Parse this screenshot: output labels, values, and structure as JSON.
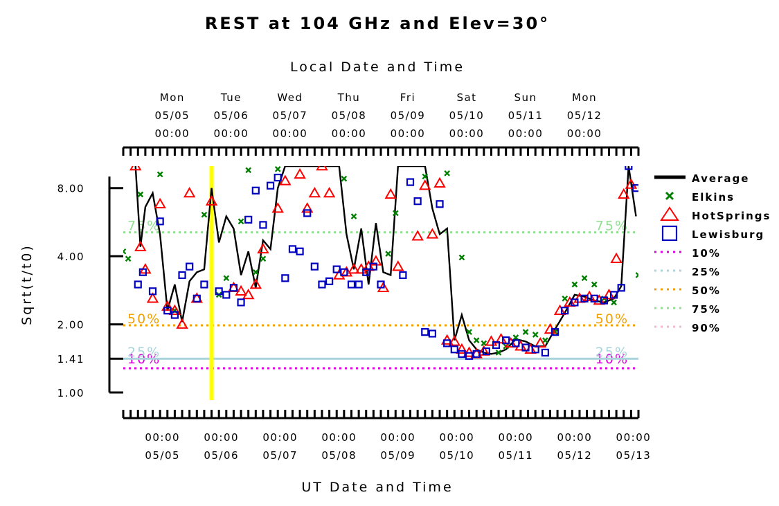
{
  "chart_data": {
    "type": "scatter",
    "title": "REST at 104 GHz and Elev=30°",
    "xlabel": "UT Date and Time",
    "x2label": "Local Date and Time",
    "ylabel": "Sqrt(t/t0)",
    "y_scale": "log",
    "ylim": [
      1.0,
      10.0
    ],
    "xlim": [
      "2008-05-04T08:00",
      "2008-05-13T02:00"
    ],
    "y_ticks": [
      "1.00",
      "1.41",
      "2.00",
      "4.00",
      "8.00"
    ],
    "y_tick_values": [
      1.0,
      1.41,
      2.0,
      4.0,
      8.0
    ],
    "x_ticks_ut": [
      {
        "time": "00:00",
        "date": "05/05"
      },
      {
        "time": "00:00",
        "date": "05/06"
      },
      {
        "time": "00:00",
        "date": "05/07"
      },
      {
        "time": "00:00",
        "date": "05/08"
      },
      {
        "time": "00:00",
        "date": "05/09"
      },
      {
        "time": "00:00",
        "date": "05/10"
      },
      {
        "time": "00:00",
        "date": "05/11"
      },
      {
        "time": "00:00",
        "date": "05/12"
      },
      {
        "time": "00:00",
        "date": "05/13"
      }
    ],
    "x_ticks_local": [
      {
        "day": "Mon",
        "date": "05/05",
        "time": "00:00"
      },
      {
        "day": "Tue",
        "date": "05/06",
        "time": "00:00"
      },
      {
        "day": "Wed",
        "date": "05/07",
        "time": "00:00"
      },
      {
        "day": "Thu",
        "date": "05/08",
        "time": "00:00"
      },
      {
        "day": "Fri",
        "date": "05/09",
        "time": "00:00"
      },
      {
        "day": "Sat",
        "date": "05/10",
        "time": "00:00"
      },
      {
        "day": "Sun",
        "date": "05/11",
        "time": "00:00"
      },
      {
        "day": "Mon",
        "date": "05/12",
        "time": "00:00"
      }
    ],
    "highlight_x": "2008-05-05T20:00",
    "reference_lines": [
      {
        "label": "10%",
        "value": 1.28,
        "color": "#e000e0"
      },
      {
        "label": "25%",
        "value": 1.41,
        "color": "#aad4dc"
      },
      {
        "label": "50%",
        "value": 1.98,
        "color": "#f0a000"
      },
      {
        "label": "75%",
        "value": 5.1,
        "color": "#90e090"
      },
      {
        "label": "90%",
        "value": null,
        "color": "#f4b8c8"
      }
    ],
    "series": [
      {
        "name": "Average",
        "marker": "line",
        "color": "#000000",
        "points": [
          [
            "2008-05-04T13:00",
            10.0
          ],
          [
            "2008-05-04T15:00",
            4.4
          ],
          [
            "2008-05-04T17:00",
            6.6
          ],
          [
            "2008-05-04T20:00",
            7.6
          ],
          [
            "2008-05-04T23:00",
            5.0
          ],
          [
            "2008-05-05T02:00",
            2.3
          ],
          [
            "2008-05-05T05:00",
            3.0
          ],
          [
            "2008-05-05T08:00",
            2.05
          ],
          [
            "2008-05-05T11:00",
            3.1
          ],
          [
            "2008-05-05T14:00",
            3.4
          ],
          [
            "2008-05-05T17:00",
            3.5
          ],
          [
            "2008-05-05T20:00",
            8.0
          ],
          [
            "2008-05-05T23:00",
            4.6
          ],
          [
            "2008-05-06T02:00",
            6.0
          ],
          [
            "2008-05-06T05:00",
            5.3
          ],
          [
            "2008-05-06T08:00",
            3.3
          ],
          [
            "2008-05-06T11:00",
            4.2
          ],
          [
            "2008-05-06T14:00",
            2.9
          ],
          [
            "2008-05-06T17:00",
            4.7
          ],
          [
            "2008-05-06T20:00",
            4.3
          ],
          [
            "2008-05-06T23:00",
            8.0
          ],
          [
            "2008-05-07T02:00",
            10.0
          ],
          [
            "2008-05-08T00:00",
            10.0
          ],
          [
            "2008-05-08T03:00",
            5.0
          ],
          [
            "2008-05-08T06:00",
            3.5
          ],
          [
            "2008-05-08T09:00",
            5.3
          ],
          [
            "2008-05-08T12:00",
            3.0
          ],
          [
            "2008-05-08T15:00",
            5.6
          ],
          [
            "2008-05-08T18:00",
            3.4
          ],
          [
            "2008-05-08T21:00",
            3.3
          ],
          [
            "2008-05-09T00:00",
            10.0
          ],
          [
            "2008-05-09T11:00",
            10.0
          ],
          [
            "2008-05-09T14:00",
            6.5
          ],
          [
            "2008-05-09T17:00",
            5.0
          ],
          [
            "2008-05-09T20:00",
            5.3
          ],
          [
            "2008-05-09T23:00",
            1.7
          ],
          [
            "2008-05-10T02:00",
            2.2
          ],
          [
            "2008-05-10T05:00",
            1.7
          ],
          [
            "2008-05-10T08:00",
            1.55
          ],
          [
            "2008-05-10T11:00",
            1.5
          ],
          [
            "2008-05-10T14:00",
            1.48
          ],
          [
            "2008-05-10T17:00",
            1.5
          ],
          [
            "2008-05-10T20:00",
            1.55
          ],
          [
            "2008-05-11T00:00",
            1.72
          ],
          [
            "2008-05-11T04:00",
            1.68
          ],
          [
            "2008-05-11T08:00",
            1.6
          ],
          [
            "2008-05-11T12:00",
            1.6
          ],
          [
            "2008-05-11T16:00",
            1.9
          ],
          [
            "2008-05-11T20:00",
            2.25
          ],
          [
            "2008-05-12T00:00",
            2.7
          ],
          [
            "2008-05-12T04:00",
            2.65
          ],
          [
            "2008-05-12T08:00",
            2.55
          ],
          [
            "2008-05-12T12:00",
            2.5
          ],
          [
            "2008-05-12T16:00",
            2.6
          ],
          [
            "2008-05-12T19:00",
            2.95
          ],
          [
            "2008-05-12T22:00",
            10.0
          ],
          [
            "2008-05-13T01:00",
            6.0
          ]
        ]
      },
      {
        "name": "Elkins",
        "marker": "x",
        "color": "#008000",
        "points": [
          [
            "2008-05-04T08:00",
            4.2
          ],
          [
            "2008-05-04T10:00",
            3.9
          ],
          [
            "2008-05-04T15:00",
            7.5
          ],
          [
            "2008-05-04T23:00",
            9.2
          ],
          [
            "2008-05-05T05:00",
            2.3
          ],
          [
            "2008-05-05T17:00",
            6.1
          ],
          [
            "2008-05-05T23:00",
            2.7
          ],
          [
            "2008-05-06T02:00",
            3.2
          ],
          [
            "2008-05-06T08:00",
            5.7
          ],
          [
            "2008-05-06T11:00",
            9.6
          ],
          [
            "2008-05-06T14:00",
            3.4
          ],
          [
            "2008-05-06T17:00",
            3.9
          ],
          [
            "2008-05-06T23:00",
            9.7
          ],
          [
            "2008-05-08T02:00",
            8.8
          ],
          [
            "2008-05-08T06:00",
            6.0
          ],
          [
            "2008-05-08T20:00",
            4.1
          ],
          [
            "2008-05-08T23:00",
            6.2
          ],
          [
            "2008-05-09T11:00",
            9.0
          ],
          [
            "2008-05-09T20:00",
            9.3
          ],
          [
            "2008-05-10T02:00",
            3.95
          ],
          [
            "2008-05-10T05:00",
            1.85
          ],
          [
            "2008-05-10T08:00",
            1.7
          ],
          [
            "2008-05-10T11:00",
            1.65
          ],
          [
            "2008-05-10T17:00",
            1.5
          ],
          [
            "2008-05-10T20:00",
            1.6
          ],
          [
            "2008-05-11T00:00",
            1.75
          ],
          [
            "2008-05-11T04:00",
            1.85
          ],
          [
            "2008-05-11T08:00",
            1.8
          ],
          [
            "2008-05-11T12:00",
            1.7
          ],
          [
            "2008-05-11T16:00",
            1.85
          ],
          [
            "2008-05-11T20:00",
            2.6
          ],
          [
            "2008-05-12T00:00",
            3.0
          ],
          [
            "2008-05-12T04:00",
            3.2
          ],
          [
            "2008-05-12T08:00",
            3.0
          ],
          [
            "2008-05-12T12:00",
            2.6
          ],
          [
            "2008-05-12T16:00",
            2.5
          ],
          [
            "2008-05-13T02:00",
            3.3
          ]
        ]
      },
      {
        "name": "HotSprings",
        "marker": "triangle",
        "color": "#ff0000",
        "points": [
          [
            "2008-05-04T13:00",
            10.0
          ],
          [
            "2008-05-04T15:00",
            4.4
          ],
          [
            "2008-05-04T17:00",
            3.5
          ],
          [
            "2008-05-04T20:00",
            2.6
          ],
          [
            "2008-05-04T23:00",
            6.8
          ],
          [
            "2008-05-05T02:00",
            2.4
          ],
          [
            "2008-05-05T05:00",
            2.3
          ],
          [
            "2008-05-05T08:00",
            2.0
          ],
          [
            "2008-05-05T11:00",
            7.6
          ],
          [
            "2008-05-05T14:00",
            2.6
          ],
          [
            "2008-05-05T20:00",
            7.0
          ],
          [
            "2008-05-06T05:00",
            2.9
          ],
          [
            "2008-05-06T08:00",
            2.8
          ],
          [
            "2008-05-06T11:00",
            2.7
          ],
          [
            "2008-05-06T14:00",
            3.0
          ],
          [
            "2008-05-06T17:00",
            4.3
          ],
          [
            "2008-05-06T23:00",
            6.5
          ],
          [
            "2008-05-07T02:00",
            8.6
          ],
          [
            "2008-05-07T08:00",
            9.2
          ],
          [
            "2008-05-07T11:00",
            6.5
          ],
          [
            "2008-05-07T14:00",
            7.6
          ],
          [
            "2008-05-07T17:00",
            10.0
          ],
          [
            "2008-05-07T20:00",
            7.6
          ],
          [
            "2008-05-08T00:00",
            3.3
          ],
          [
            "2008-05-08T03:00",
            3.4
          ],
          [
            "2008-05-08T06:00",
            3.5
          ],
          [
            "2008-05-08T09:00",
            3.5
          ],
          [
            "2008-05-08T12:00",
            3.6
          ],
          [
            "2008-05-08T15:00",
            3.8
          ],
          [
            "2008-05-08T18:00",
            2.9
          ],
          [
            "2008-05-08T21:00",
            7.5
          ],
          [
            "2008-05-09T00:00",
            3.6
          ],
          [
            "2008-05-09T08:00",
            4.9
          ],
          [
            "2008-05-09T11:00",
            8.2
          ],
          [
            "2008-05-09T14:00",
            5.0
          ],
          [
            "2008-05-09T17:00",
            8.4
          ],
          [
            "2008-05-09T20:00",
            1.7
          ],
          [
            "2008-05-09T23:00",
            1.68
          ],
          [
            "2008-05-10T02:00",
            1.55
          ],
          [
            "2008-05-10T05:00",
            1.5
          ],
          [
            "2008-05-10T08:00",
            1.48
          ],
          [
            "2008-05-10T11:00",
            1.52
          ],
          [
            "2008-05-10T14:00",
            1.68
          ],
          [
            "2008-05-10T18:00",
            1.72
          ],
          [
            "2008-05-10T22:00",
            1.65
          ],
          [
            "2008-05-11T02:00",
            1.6
          ],
          [
            "2008-05-11T06:00",
            1.55
          ],
          [
            "2008-05-11T10:00",
            1.65
          ],
          [
            "2008-05-11T14:00",
            1.9
          ],
          [
            "2008-05-11T18:00",
            2.3
          ],
          [
            "2008-05-11T22:00",
            2.5
          ],
          [
            "2008-05-12T02:00",
            2.6
          ],
          [
            "2008-05-12T06:00",
            2.65
          ],
          [
            "2008-05-12T10:00",
            2.55
          ],
          [
            "2008-05-12T14:00",
            2.7
          ],
          [
            "2008-05-12T17:00",
            3.9
          ],
          [
            "2008-05-12T20:00",
            7.5
          ],
          [
            "2008-05-12T23:00",
            8.3
          ]
        ]
      },
      {
        "name": "Lewisburg",
        "marker": "square",
        "color": "#0000c0",
        "points": [
          [
            "2008-05-04T14:00",
            3.0
          ],
          [
            "2008-05-04T16:00",
            3.4
          ],
          [
            "2008-05-04T20:00",
            2.8
          ],
          [
            "2008-05-04T23:00",
            5.7
          ],
          [
            "2008-05-05T02:00",
            2.3
          ],
          [
            "2008-05-05T05:00",
            2.2
          ],
          [
            "2008-05-05T08:00",
            3.3
          ],
          [
            "2008-05-05T11:00",
            3.6
          ],
          [
            "2008-05-05T14:00",
            2.6
          ],
          [
            "2008-05-05T17:00",
            3.0
          ],
          [
            "2008-05-05T23:00",
            2.8
          ],
          [
            "2008-05-06T02:00",
            2.7
          ],
          [
            "2008-05-06T05:00",
            2.9
          ],
          [
            "2008-05-06T08:00",
            2.5
          ],
          [
            "2008-05-06T11:00",
            5.8
          ],
          [
            "2008-05-06T14:00",
            7.8
          ],
          [
            "2008-05-06T17:00",
            5.5
          ],
          [
            "2008-05-06T20:00",
            8.2
          ],
          [
            "2008-05-06T23:00",
            8.9
          ],
          [
            "2008-05-07T02:00",
            3.2
          ],
          [
            "2008-05-07T05:00",
            4.3
          ],
          [
            "2008-05-07T08:00",
            4.2
          ],
          [
            "2008-05-07T11:00",
            6.2
          ],
          [
            "2008-05-07T14:00",
            3.6
          ],
          [
            "2008-05-07T17:00",
            3.0
          ],
          [
            "2008-05-07T20:00",
            3.1
          ],
          [
            "2008-05-07T23:00",
            3.5
          ],
          [
            "2008-05-08T02:00",
            3.4
          ],
          [
            "2008-05-08T05:00",
            3.0
          ],
          [
            "2008-05-08T08:00",
            3.0
          ],
          [
            "2008-05-08T11:00",
            3.4
          ],
          [
            "2008-05-08T14:00",
            3.6
          ],
          [
            "2008-05-08T17:00",
            3.0
          ],
          [
            "2008-05-09T02:00",
            3.3
          ],
          [
            "2008-05-09T05:00",
            8.5
          ],
          [
            "2008-05-09T08:00",
            7.0
          ],
          [
            "2008-05-09T11:00",
            1.85
          ],
          [
            "2008-05-09T14:00",
            1.82
          ],
          [
            "2008-05-09T17:00",
            6.8
          ],
          [
            "2008-05-09T20:00",
            1.65
          ],
          [
            "2008-05-09T23:00",
            1.55
          ],
          [
            "2008-05-10T02:00",
            1.48
          ],
          [
            "2008-05-10T05:00",
            1.45
          ],
          [
            "2008-05-10T08:00",
            1.48
          ],
          [
            "2008-05-10T12:00",
            1.52
          ],
          [
            "2008-05-10T16:00",
            1.62
          ],
          [
            "2008-05-10T20:00",
            1.7
          ],
          [
            "2008-05-11T00:00",
            1.65
          ],
          [
            "2008-05-11T04:00",
            1.58
          ],
          [
            "2008-05-11T08:00",
            1.55
          ],
          [
            "2008-05-11T12:00",
            1.5
          ],
          [
            "2008-05-11T16:00",
            1.85
          ],
          [
            "2008-05-11T20:00",
            2.3
          ],
          [
            "2008-05-12T00:00",
            2.5
          ],
          [
            "2008-05-12T04:00",
            2.6
          ],
          [
            "2008-05-12T08:00",
            2.6
          ],
          [
            "2008-05-12T12:00",
            2.55
          ],
          [
            "2008-05-12T16:00",
            2.7
          ],
          [
            "2008-05-12T19:00",
            2.9
          ],
          [
            "2008-05-12T22:00",
            10.0
          ],
          [
            "2008-05-13T01:00",
            8.0
          ]
        ]
      }
    ]
  }
}
